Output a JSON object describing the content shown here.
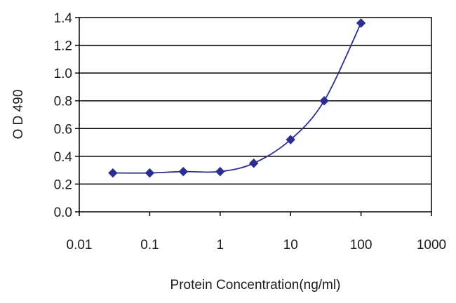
{
  "chart_data": {
    "type": "line",
    "xlabel": "Protein Concentration(ng/ml)",
    "ylabel": "O D 490",
    "xscale": "log",
    "xlim": [
      0.01,
      1000
    ],
    "ylim": [
      0.0,
      1.4
    ],
    "x_ticks": [
      "0.01",
      "0.1",
      "1",
      "10",
      "100",
      "1000"
    ],
    "y_ticks": [
      "0.0",
      "0.2",
      "0.4",
      "0.6",
      "0.8",
      "1.0",
      "1.2",
      "1.4"
    ],
    "grid": "horizontal",
    "marker": "diamond",
    "color": "#2b2e8f",
    "series": [
      {
        "x": [
          0.03,
          0.1,
          0.3,
          1,
          3,
          10,
          30,
          100
        ],
        "values": [
          0.28,
          0.28,
          0.29,
          0.29,
          0.35,
          0.52,
          0.8,
          1.36
        ]
      }
    ]
  }
}
